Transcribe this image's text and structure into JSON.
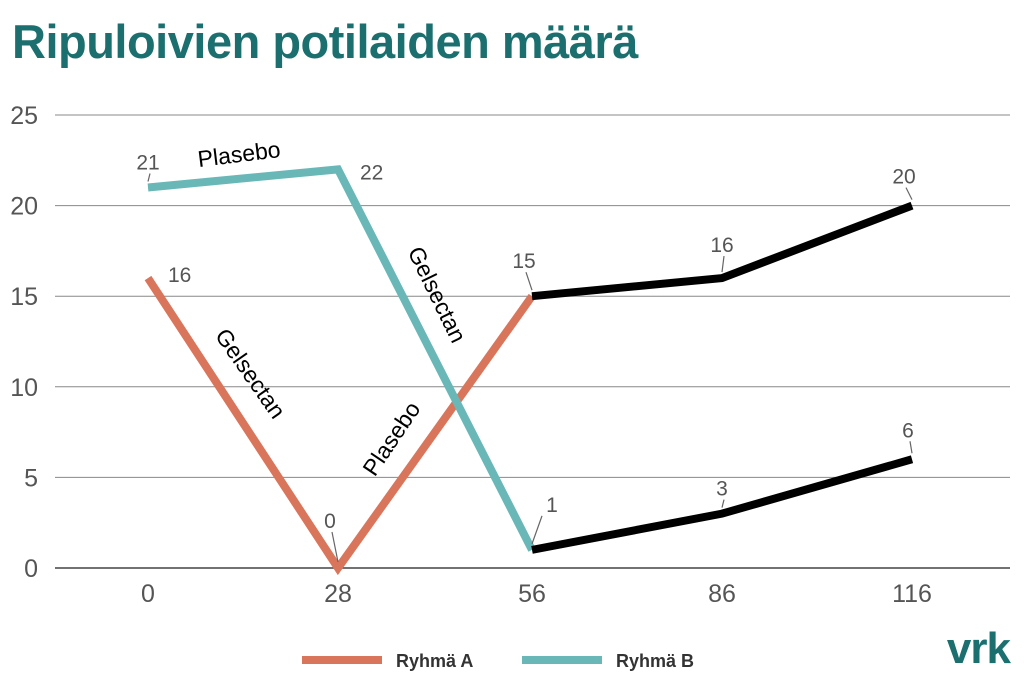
{
  "chart_data": {
    "type": "line",
    "title": "Ripuloivien potilaiden määrä",
    "xlabel": "",
    "ylabel": "",
    "categories": [
      "0",
      "28",
      "56",
      "86",
      "116"
    ],
    "x": [
      0,
      28,
      56,
      86,
      116
    ],
    "ylim": [
      0,
      25
    ],
    "yticks": [
      0,
      5,
      10,
      15,
      20,
      25
    ],
    "grid": true,
    "legend": "bottom-center",
    "series": [
      {
        "name": "Ryhmä A",
        "color": "#d9755b",
        "x": [
          0,
          28,
          56
        ],
        "values": [
          16,
          0,
          15
        ],
        "labels": [
          "16",
          "0",
          "15"
        ]
      },
      {
        "name": "Ryhmä B",
        "color": "#6ab7b8",
        "x": [
          0,
          28,
          56
        ],
        "values": [
          21,
          22,
          1
        ],
        "labels": [
          "21",
          "22",
          "1"
        ]
      },
      {
        "name": "",
        "color": "#000000",
        "x": [
          56,
          86,
          116
        ],
        "values": [
          15,
          16,
          20
        ],
        "labels": [
          "15",
          "16",
          "20"
        ]
      },
      {
        "name": "",
        "color": "#000000",
        "x": [
          56,
          86,
          116
        ],
        "values": [
          1,
          3,
          6
        ],
        "labels": [
          "1",
          "3",
          "6"
        ]
      }
    ],
    "annotations": [
      "Plasebo",
      "Gelsectan",
      "Gelsectan",
      "Plasebo"
    ]
  },
  "brand": {
    "logo": "vrk",
    "color": "#1b6f6e"
  }
}
